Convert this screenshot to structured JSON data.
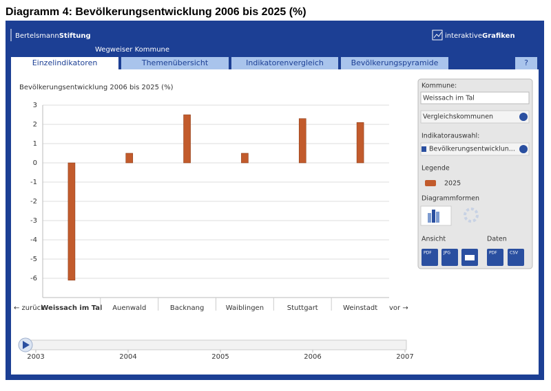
{
  "caption": "Diagramm 4: Bevölkerungsentwicklung 2006 bis 2025 (%)",
  "header": {
    "brand_light": "Bertelsmann",
    "brand_bold": "Stiftung",
    "subtitle": "Wegweiser Kommune",
    "product_light": "interaktive",
    "product_bold": "Grafiken"
  },
  "tabs": [
    "Einzelindikatoren",
    "Themenübersicht",
    "Indikatorenvergleich",
    "Bevölkerungspyramide",
    "?"
  ],
  "chart_data": {
    "type": "bar",
    "title": "Bevölkerungsentwicklung 2006 bis 2025 (%)",
    "categories": [
      "Weissach im Tal",
      "Auenwald",
      "Backnang",
      "Waiblingen",
      "Stuttgart",
      "Weinstadt"
    ],
    "series": [
      {
        "name": "2025",
        "color": "#c25b2c",
        "values": [
          -6.1,
          0.5,
          2.5,
          0.5,
          2.3,
          2.1
        ]
      }
    ],
    "ylim": [
      -7,
      3
    ],
    "yticks": [
      3,
      2,
      1,
      0,
      -1,
      -2,
      -3,
      -4,
      -5,
      -6
    ],
    "grid": true
  },
  "nav": {
    "back": "← zurück",
    "forward": "vor →"
  },
  "timeline": {
    "labels": [
      "2003",
      "2004",
      "2005",
      "2006",
      "2007"
    ]
  },
  "sidebar": {
    "kommune_label": "Kommune:",
    "kommune_value": "Weissach im Tal",
    "compare": "Vergleichskommunen",
    "indicator_label": "Indikatorauswahl:",
    "indicator_value": "Bevölkerungsentwicklun...",
    "legend_label": "Legende",
    "forms_label": "Diagrammformen",
    "view_label": "Ansicht",
    "data_label": "Daten",
    "view_icons": [
      "PDF",
      "JPG"
    ],
    "data_icons": [
      "PDF",
      "CSV"
    ]
  }
}
